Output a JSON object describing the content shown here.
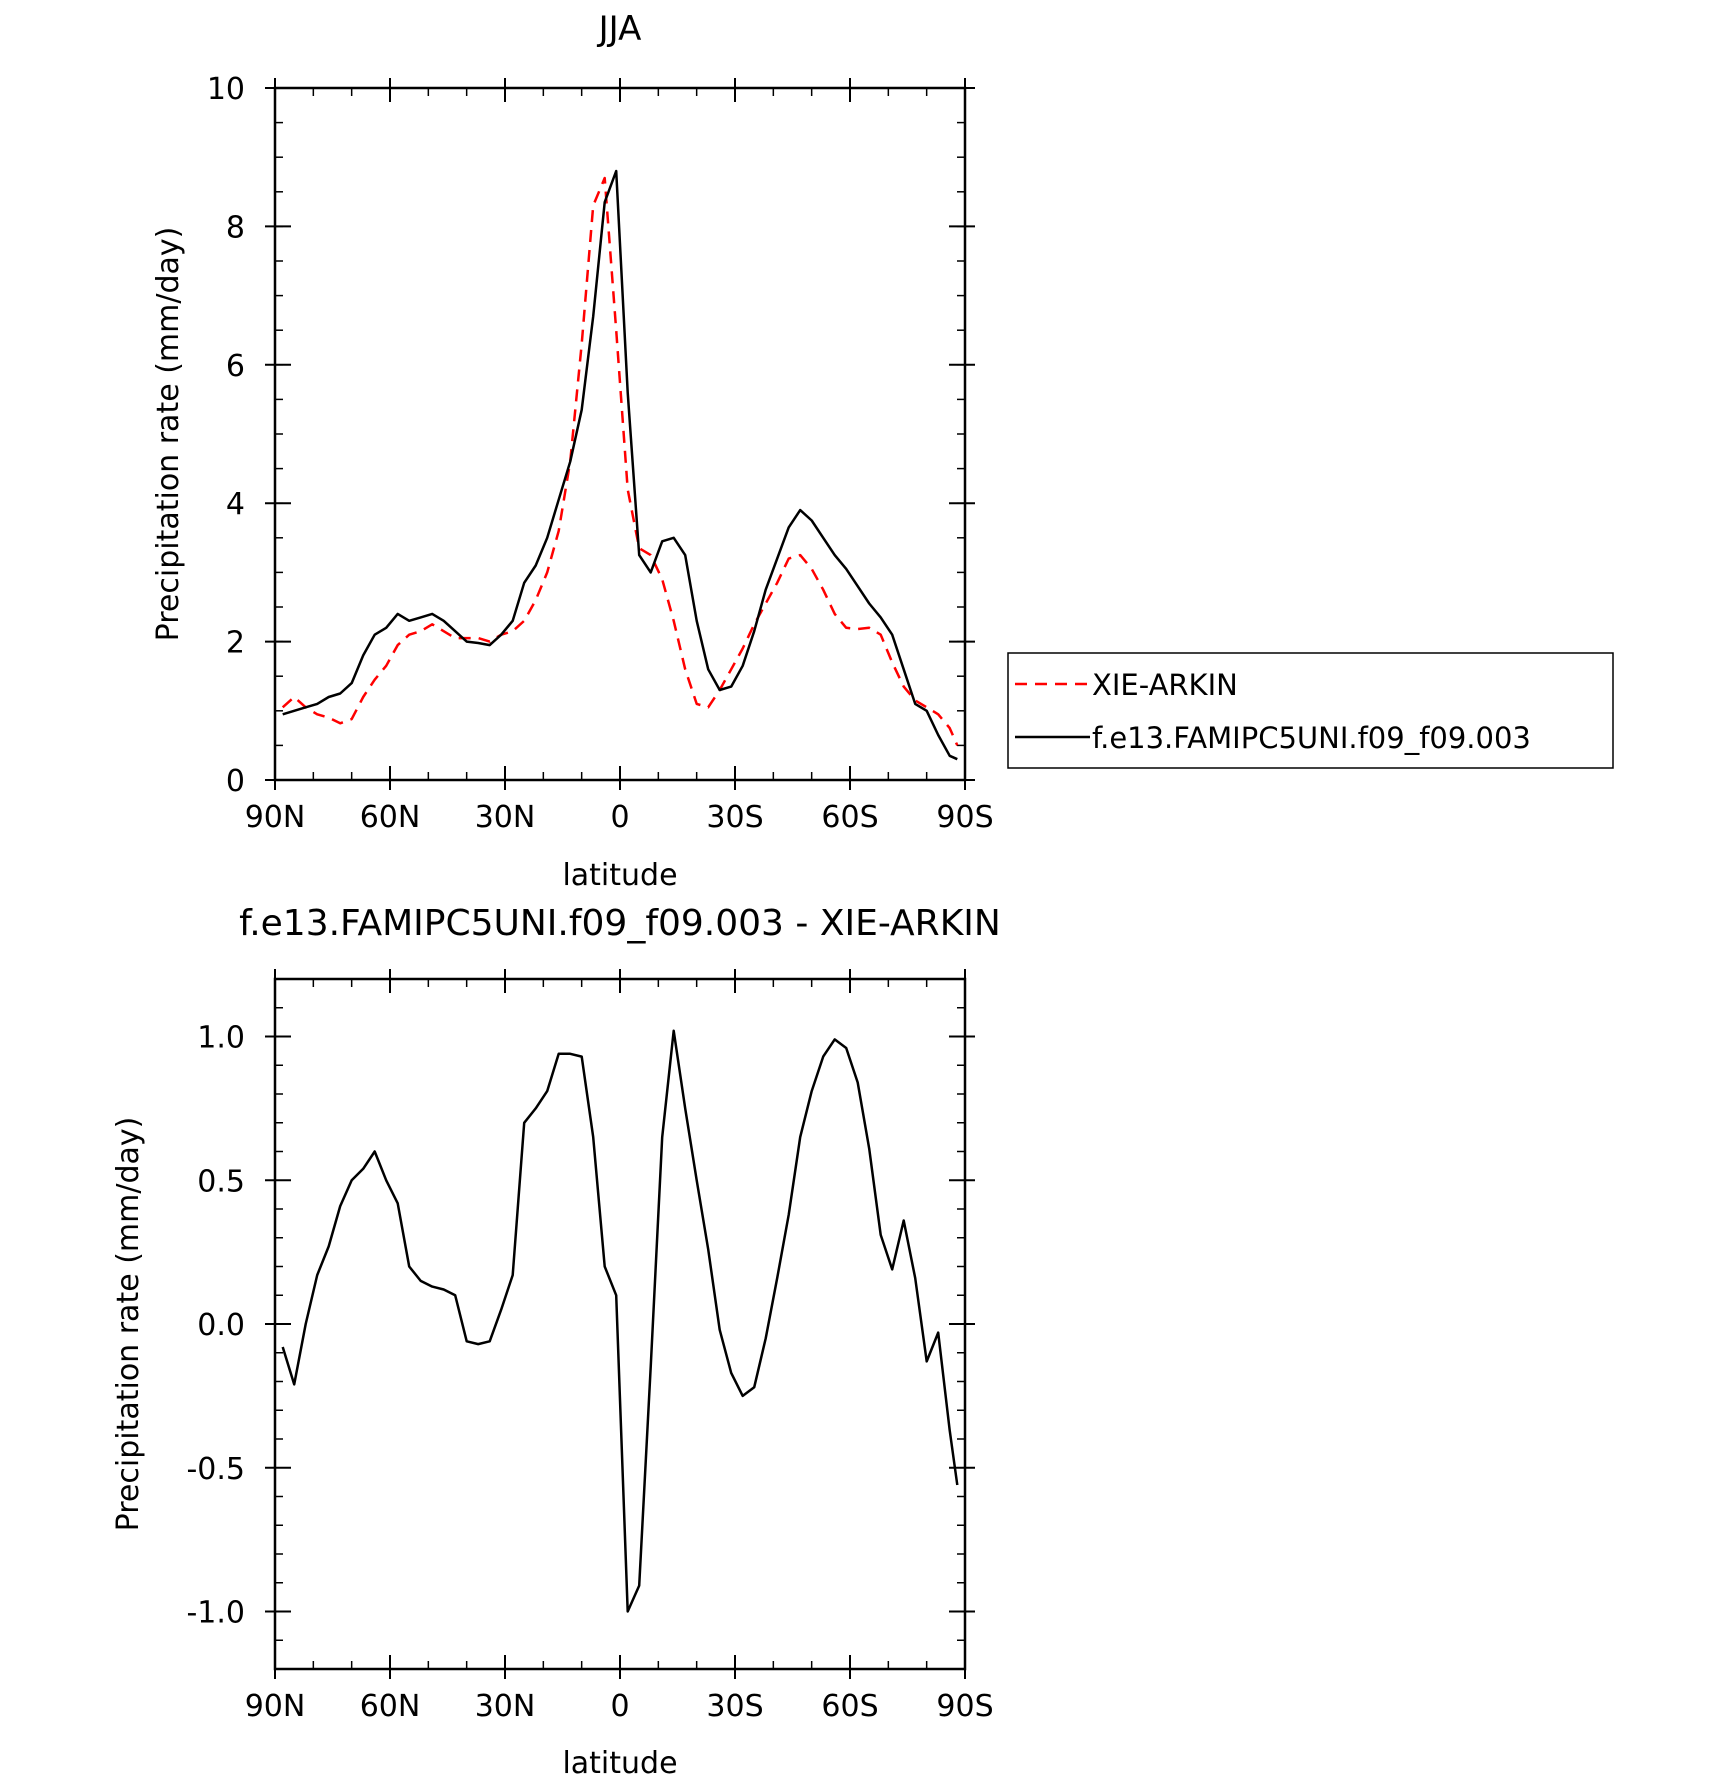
{
  "chart_data": [
    {
      "type": "line",
      "title": "JJA",
      "xlabel": "latitude",
      "ylabel": "Precipitation rate (mm/day)",
      "xlim": [
        90,
        -90
      ],
      "ylim": [
        0,
        10
      ],
      "xticks": [
        90,
        60,
        30,
        0,
        -30,
        -60,
        -90
      ],
      "xtick_labels": [
        "90N",
        "60N",
        "30N",
        "0",
        "30S",
        "60S",
        "90S"
      ],
      "yticks": [
        0,
        2,
        4,
        6,
        8,
        10
      ],
      "ytick_labels": [
        "0",
        "2",
        "4",
        "6",
        "8",
        "10"
      ],
      "legend_position": "right",
      "series": [
        {
          "name": "XIE-ARKIN",
          "color": "#ff0000",
          "dash": "dashed",
          "x": [
            88,
            85,
            82,
            79,
            76,
            73,
            70,
            67,
            64,
            61,
            58,
            55,
            52,
            49,
            46,
            43,
            40,
            37,
            34,
            31,
            28,
            25,
            22,
            19,
            16,
            13,
            10,
            7,
            4,
            1,
            -2,
            -5,
            -8,
            -11,
            -14,
            -17,
            -20,
            -23,
            -26,
            -29,
            -32,
            -35,
            -38,
            -41,
            -44,
            -47,
            -50,
            -53,
            -56,
            -59,
            -62,
            -65,
            -68,
            -71,
            -74,
            -77,
            -80,
            -83,
            -86,
            -88
          ],
          "y": [
            1.05,
            1.2,
            1.05,
            0.95,
            0.9,
            0.82,
            0.88,
            1.2,
            1.45,
            1.65,
            1.95,
            2.1,
            2.15,
            2.25,
            2.15,
            2.05,
            2.05,
            2.05,
            2.0,
            2.1,
            2.15,
            2.3,
            2.6,
            3.0,
            3.6,
            4.6,
            6.3,
            8.3,
            8.7,
            6.5,
            4.2,
            3.35,
            3.25,
            2.9,
            2.3,
            1.6,
            1.1,
            1.05,
            1.3,
            1.6,
            1.9,
            2.25,
            2.55,
            2.85,
            3.2,
            3.25,
            3.05,
            2.75,
            2.4,
            2.2,
            2.18,
            2.2,
            2.1,
            1.7,
            1.35,
            1.15,
            1.05,
            0.95,
            0.75,
            0.5
          ]
        },
        {
          "name": "f.e13.FAMIPC5UNI.f09_f09.003",
          "color": "#000000",
          "dash": "solid",
          "x": [
            88,
            85,
            82,
            79,
            76,
            73,
            70,
            67,
            64,
            61,
            58,
            55,
            52,
            49,
            46,
            43,
            40,
            37,
            34,
            31,
            28,
            25,
            22,
            19,
            16,
            13,
            10,
            7,
            4,
            1,
            -2,
            -5,
            -8,
            -11,
            -14,
            -17,
            -20,
            -23,
            -26,
            -29,
            -32,
            -35,
            -38,
            -41,
            -44,
            -47,
            -50,
            -53,
            -56,
            -59,
            -62,
            -65,
            -68,
            -71,
            -74,
            -77,
            -80,
            -83,
            -86,
            -88
          ],
          "y": [
            0.95,
            1.0,
            1.05,
            1.1,
            1.2,
            1.25,
            1.4,
            1.8,
            2.1,
            2.2,
            2.4,
            2.3,
            2.35,
            2.4,
            2.3,
            2.15,
            2.0,
            1.98,
            1.95,
            2.1,
            2.3,
            2.85,
            3.1,
            3.5,
            4.05,
            4.6,
            5.35,
            6.7,
            8.35,
            8.8,
            5.6,
            3.25,
            3.0,
            3.45,
            3.5,
            3.25,
            2.3,
            1.6,
            1.3,
            1.35,
            1.65,
            2.15,
            2.75,
            3.2,
            3.65,
            3.9,
            3.75,
            3.5,
            3.25,
            3.05,
            2.8,
            2.55,
            2.35,
            2.1,
            1.6,
            1.1,
            1.0,
            0.65,
            0.35,
            0.3
          ]
        }
      ]
    },
    {
      "type": "line",
      "title": "f.e13.FAMIPC5UNI.f09_f09.003 - XIE-ARKIN",
      "xlabel": "latitude",
      "ylabel": "Precipitation rate (mm/day)",
      "xlim": [
        90,
        -90
      ],
      "ylim": [
        -1.2,
        1.2
      ],
      "xticks": [
        90,
        60,
        30,
        0,
        -30,
        -60,
        -90
      ],
      "xtick_labels": [
        "90N",
        "60N",
        "30N",
        "0",
        "30S",
        "60S",
        "90S"
      ],
      "yticks": [
        -1.0,
        -0.5,
        0.0,
        0.5,
        1.0
      ],
      "ytick_labels": [
        "-1.0",
        "-0.5",
        "0.0",
        "0.5",
        "1.0"
      ],
      "series": [
        {
          "color": "#000000",
          "dash": "solid",
          "x": [
            88,
            85,
            82,
            79,
            76,
            73,
            70,
            67,
            64,
            61,
            58,
            55,
            52,
            49,
            46,
            43,
            40,
            37,
            34,
            31,
            28,
            25,
            22,
            19,
            16,
            13,
            10,
            7,
            4,
            1,
            -2,
            -5,
            -8,
            -11,
            -14,
            -17,
            -20,
            -23,
            -26,
            -29,
            -32,
            -35,
            -38,
            -41,
            -44,
            -47,
            -50,
            -53,
            -56,
            -59,
            -62,
            -65,
            -68,
            -71,
            -74,
            -77,
            -80,
            -83,
            -86,
            -88
          ],
          "y": [
            -0.08,
            -0.21,
            0.0,
            0.17,
            0.27,
            0.41,
            0.5,
            0.54,
            0.6,
            0.5,
            0.42,
            0.2,
            0.15,
            0.13,
            0.12,
            0.1,
            -0.06,
            -0.07,
            -0.06,
            0.05,
            0.17,
            0.7,
            0.75,
            0.81,
            0.94,
            0.94,
            0.93,
            0.65,
            0.2,
            0.1,
            -1.0,
            -0.91,
            -0.15,
            0.65,
            1.02,
            0.75,
            0.5,
            0.26,
            -0.02,
            -0.17,
            -0.25,
            -0.22,
            -0.05,
            0.16,
            0.38,
            0.65,
            0.81,
            0.93,
            0.99,
            0.96,
            0.84,
            0.61,
            0.31,
            0.19,
            0.36,
            0.16,
            -0.13,
            -0.03,
            -0.37,
            -0.56
          ]
        }
      ]
    }
  ]
}
